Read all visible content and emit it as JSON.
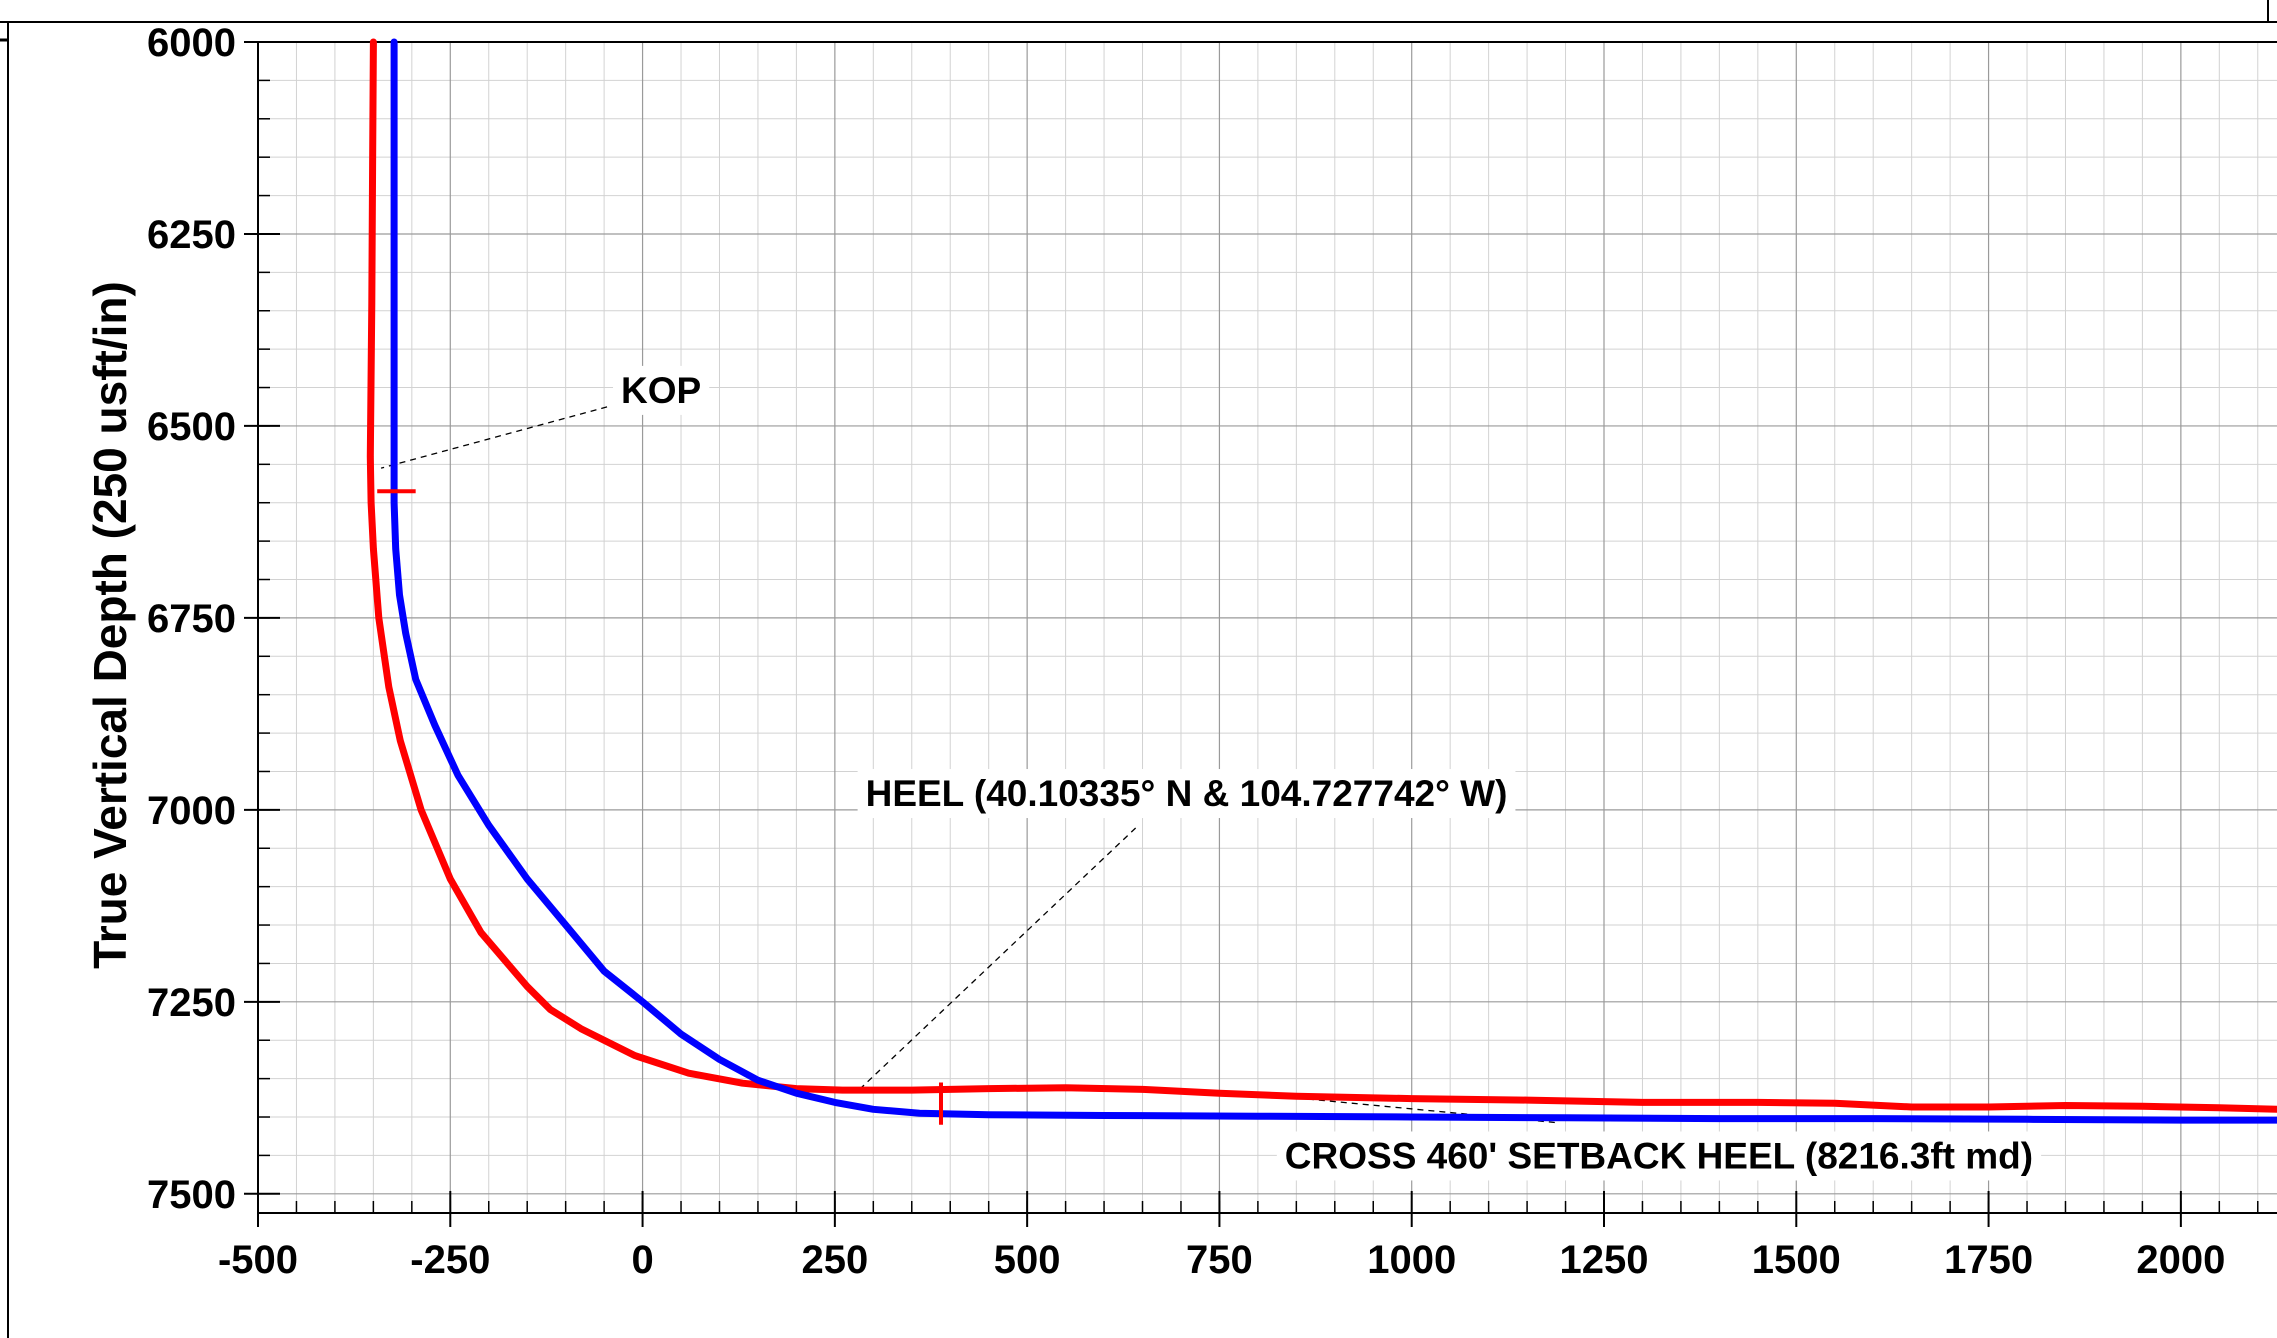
{
  "chart_data": {
    "type": "line",
    "title": "",
    "ylabel": "True Vertical Depth (250 usft/in)",
    "xlabel": "",
    "xlim": [
      -500,
      2125
    ],
    "ylim": [
      6000,
      7525
    ],
    "y_inverted": true,
    "grid": true,
    "legend": "none",
    "x_ticks": [
      "-500",
      "-250",
      "0",
      "250",
      "500",
      "750",
      "1000",
      "1250",
      "1500",
      "1750",
      "2000"
    ],
    "y_ticks": [
      "6000",
      "6250",
      "6500",
      "6750",
      "7000",
      "7250",
      "7500"
    ],
    "series": [
      {
        "color": "#ff0000",
        "points": [
          [
            -350,
            6000
          ],
          [
            -351,
            6160
          ],
          [
            -352,
            6340
          ],
          [
            -354,
            6540
          ],
          [
            -353,
            6600
          ],
          [
            -350,
            6660
          ],
          [
            -343,
            6750
          ],
          [
            -330,
            6840
          ],
          [
            -315,
            6910
          ],
          [
            -288,
            7000
          ],
          [
            -250,
            7090
          ],
          [
            -210,
            7160
          ],
          [
            -150,
            7230
          ],
          [
            -120,
            7260
          ],
          [
            -80,
            7285
          ],
          [
            -10,
            7320
          ],
          [
            60,
            7343
          ],
          [
            130,
            7356
          ],
          [
            200,
            7363
          ],
          [
            260,
            7365
          ],
          [
            350,
            7365
          ],
          [
            450,
            7363
          ],
          [
            550,
            7362
          ],
          [
            650,
            7364
          ],
          [
            750,
            7369
          ],
          [
            850,
            7373
          ],
          [
            1000,
            7376
          ],
          [
            1150,
            7378
          ],
          [
            1300,
            7381
          ],
          [
            1450,
            7381
          ],
          [
            1550,
            7382
          ],
          [
            1650,
            7387
          ],
          [
            1750,
            7387
          ],
          [
            1850,
            7385
          ],
          [
            1950,
            7386
          ],
          [
            2050,
            7388
          ],
          [
            2125,
            7390
          ]
        ]
      },
      {
        "color": "#0000ff",
        "points": [
          [
            -323,
            6000
          ],
          [
            -323,
            6200
          ],
          [
            -323,
            6400
          ],
          [
            -323,
            6600
          ],
          [
            -321,
            6660
          ],
          [
            -316,
            6720
          ],
          [
            -308,
            6770
          ],
          [
            -295,
            6830
          ],
          [
            -270,
            6890
          ],
          [
            -240,
            6955
          ],
          [
            -200,
            7020
          ],
          [
            -150,
            7090
          ],
          [
            -100,
            7150
          ],
          [
            -50,
            7210
          ],
          [
            0,
            7250
          ],
          [
            50,
            7292
          ],
          [
            100,
            7325
          ],
          [
            150,
            7352
          ],
          [
            200,
            7369
          ],
          [
            250,
            7381
          ],
          [
            300,
            7390
          ],
          [
            360,
            7395
          ],
          [
            450,
            7397
          ],
          [
            600,
            7398
          ],
          [
            800,
            7399
          ],
          [
            1000,
            7400
          ],
          [
            1200,
            7401
          ],
          [
            1400,
            7402
          ],
          [
            1600,
            7402
          ],
          [
            1800,
            7403
          ],
          [
            2000,
            7404
          ],
          [
            2125,
            7404
          ]
        ]
      }
    ],
    "markers": [
      {
        "color": "#ff0000",
        "orientation": "horizontal",
        "x": [
          -345,
          -295
        ],
        "y": 6585
      },
      {
        "color": "#ff0000",
        "orientation": "vertical",
        "x": 388,
        "y": [
          7355,
          7410
        ]
      }
    ],
    "annotations": [
      {
        "text": "KOP",
        "at": [
          -28,
          6470
        ],
        "anchor": [
          -340,
          6555
        ]
      },
      {
        "text": "HEEL (40.10335° N & 104.727742° W)",
        "at": [
          290,
          6995
        ],
        "anchor": [
          280,
          7366
        ]
      },
      {
        "text": "CROSS 460' SETBACK HEEL (8216.3ft md)",
        "at": [
          835,
          7467
        ],
        "anchor": [
          838,
          7374
        ]
      }
    ]
  }
}
